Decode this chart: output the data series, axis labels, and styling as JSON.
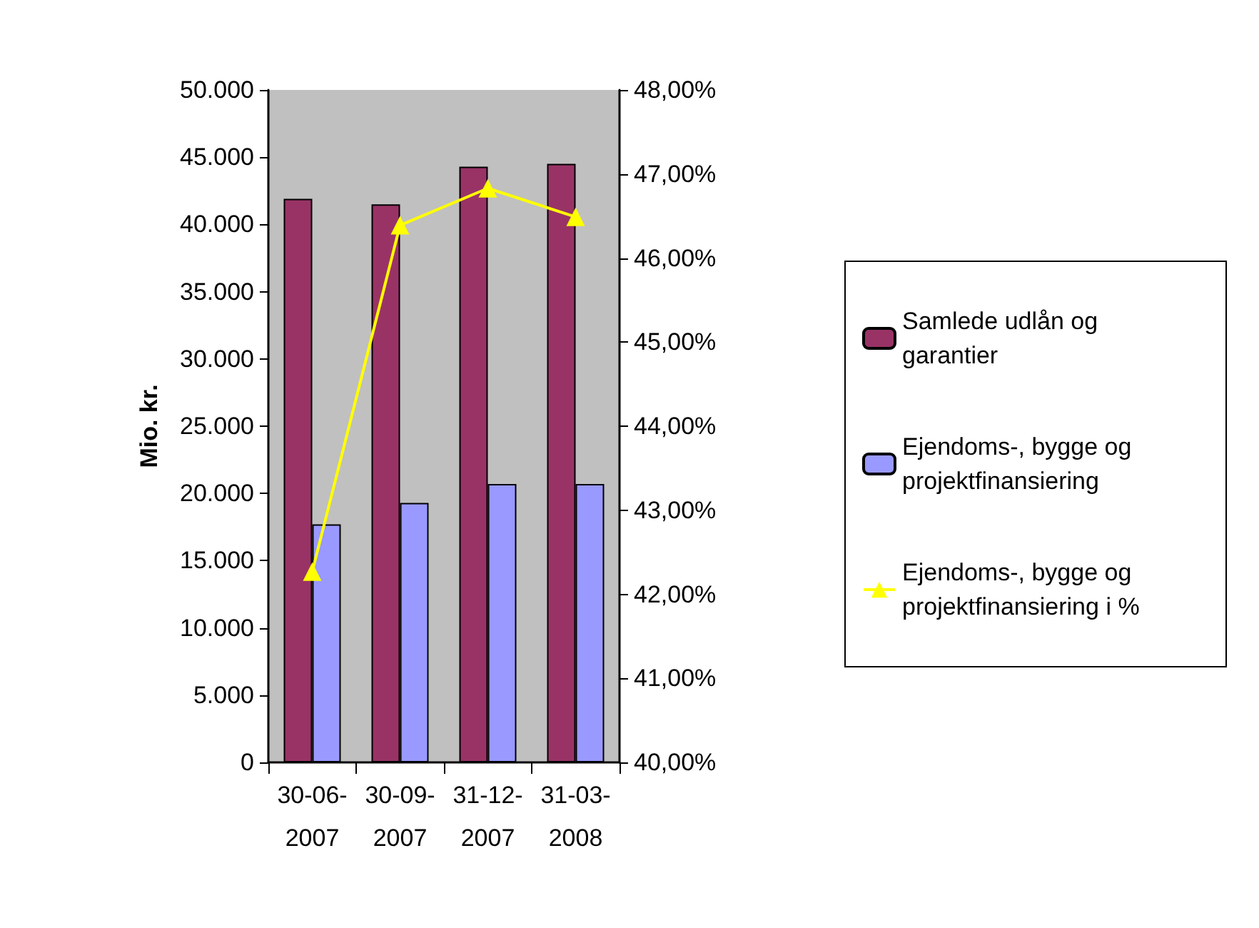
{
  "chart_data": {
    "type": "bar",
    "ylabel": "Mio. kr.",
    "categories": [
      "30-06-2007",
      "30-09-2007",
      "31-12-2007",
      "31-03-2008"
    ],
    "series": [
      {
        "name": "Samlede udlån og garantier",
        "color": "#993366",
        "values": [
          41900,
          41500,
          44300,
          44500
        ]
      },
      {
        "name": "Ejendoms-, bygge og projektfinansiering",
        "color": "#9999ff",
        "values": [
          17700,
          19300,
          20700,
          20700
        ]
      },
      {
        "name": "Ejendoms-, bygge og projektfinansiering i %",
        "type": "line",
        "axis": "y2",
        "color": "#ffff00",
        "marker": "triangle",
        "values": [
          42.27,
          46.39,
          46.83,
          46.49
        ]
      }
    ],
    "ylim": [
      0,
      50000
    ],
    "yticks": [
      {
        "value": 0,
        "label": "0"
      },
      {
        "value": 5000,
        "label": "5.000"
      },
      {
        "value": 10000,
        "label": "10.000"
      },
      {
        "value": 15000,
        "label": "15.000"
      },
      {
        "value": 20000,
        "label": "20.000"
      },
      {
        "value": 25000,
        "label": "25.000"
      },
      {
        "value": 30000,
        "label": "30.000"
      },
      {
        "value": 35000,
        "label": "35.000"
      },
      {
        "value": 40000,
        "label": "40.000"
      },
      {
        "value": 45000,
        "label": "45.000"
      },
      {
        "value": 50000,
        "label": "50.000"
      }
    ],
    "y2lim": [
      40,
      48
    ],
    "y2ticks": [
      {
        "value": 40,
        "label": "40,00%"
      },
      {
        "value": 41,
        "label": "41,00%"
      },
      {
        "value": 42,
        "label": "42,00%"
      },
      {
        "value": 43,
        "label": "43,00%"
      },
      {
        "value": 44,
        "label": "44,00%"
      },
      {
        "value": 45,
        "label": "45,00%"
      },
      {
        "value": 46,
        "label": "46,00%"
      },
      {
        "value": 47,
        "label": "47,00%"
      },
      {
        "value": 48,
        "label": "48,00%"
      }
    ],
    "grid": false,
    "legend": "right"
  }
}
